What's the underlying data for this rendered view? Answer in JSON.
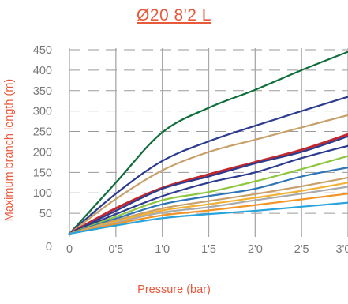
{
  "chart_data": {
    "type": "line",
    "title": "Ø20 8'2 L",
    "xlabel": "Pressure  (bar)",
    "ylabel": "Maximum branch length (m)",
    "xlim": [
      0,
      3.0
    ],
    "ylim": [
      0,
      450
    ],
    "x_ticks": [
      "0",
      "0'5",
      "1'0",
      "1'5",
      "2'0",
      "2'5",
      "3'0"
    ],
    "y_ticks": [
      "0",
      "50",
      "100",
      "150",
      "200",
      "250",
      "300",
      "350",
      "400",
      "450"
    ],
    "grid": true,
    "x": [
      0,
      0.5,
      1.0,
      1.5,
      2.0,
      2.5,
      3.0
    ],
    "series": [
      {
        "color": "#0f6d3a",
        "values": [
          0,
          125,
          248,
          308,
          352,
          400,
          445
        ]
      },
      {
        "color": "#2b3b8f",
        "values": [
          0,
          98,
          178,
          226,
          264,
          300,
          335
        ]
      },
      {
        "color": "#c8a06a",
        "values": [
          0,
          85,
          155,
          200,
          230,
          260,
          290
        ]
      },
      {
        "color": "#c0282e",
        "values": [
          0,
          62,
          112,
          145,
          175,
          205,
          243
        ]
      },
      {
        "color": "#2b3b8f",
        "values": [
          0,
          56,
          110,
          140,
          172,
          200,
          238
        ]
      },
      {
        "color": "#2b3b8f",
        "values": [
          0,
          48,
          92,
          125,
          150,
          185,
          215
        ]
      },
      {
        "color": "#8dc63f",
        "values": [
          0,
          42,
          82,
          102,
          128,
          158,
          190
        ]
      },
      {
        "color": "#2e75b6",
        "values": [
          0,
          37,
          72,
          92,
          110,
          140,
          162
        ]
      },
      {
        "color": "#c8a06a",
        "values": [
          0,
          33,
          62,
          80,
          97,
          116,
          137
        ]
      },
      {
        "color": "#f2b134",
        "values": [
          0,
          30,
          57,
          72,
          88,
          105,
          125
        ]
      },
      {
        "color": "#aaaaaa",
        "values": [
          0,
          27,
          52,
          65,
          82,
          98,
          115
        ]
      },
      {
        "color": "#f29527",
        "values": [
          0,
          24,
          45,
          57,
          70,
          84,
          98
        ]
      },
      {
        "color": "#29a3db",
        "values": [
          0,
          20,
          38,
          48,
          56,
          66,
          76
        ]
      }
    ]
  }
}
